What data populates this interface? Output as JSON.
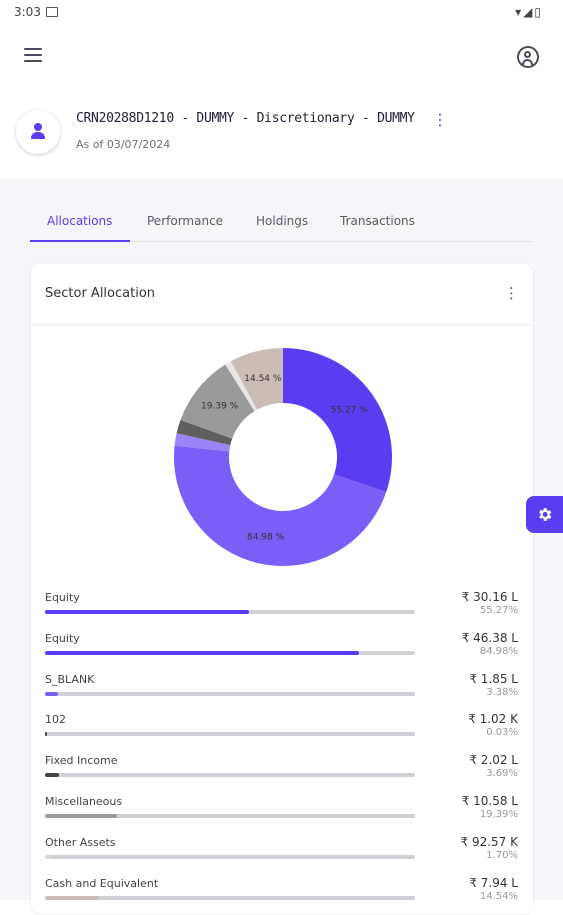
{
  "status": {
    "time": "3:03",
    "icons": "▾◢▯"
  },
  "account": {
    "name": "CRN20288D1210 - DUMMY - Discretionary - DUMMY",
    "kebab": "⋮",
    "as_of": "As of 03/07/2024"
  },
  "tabs": [
    {
      "label": "Allocations"
    },
    {
      "label": "Performance"
    },
    {
      "label": "Holdings"
    },
    {
      "label": "Transactions"
    }
  ],
  "card": {
    "title": "Sector Allocation",
    "kebab": "⋮"
  },
  "chart_data": {
    "type": "pie",
    "variant": "donut",
    "slices": [
      {
        "label": "55.27 %",
        "value": 55.27,
        "color": "#5b3cf0"
      },
      {
        "label": "84.98 %",
        "value": 84.98,
        "color": "#7b5ef5"
      },
      {
        "label": "",
        "value": 3.38,
        "color": "#9b84f7"
      },
      {
        "label": "",
        "value": 0.03,
        "color": "#444444"
      },
      {
        "label": "",
        "value": 3.69,
        "color": "#5f5f5f"
      },
      {
        "label": "19.39 %",
        "value": 19.39,
        "color": "#9a9a9a"
      },
      {
        "label": "",
        "value": 1.7,
        "color": "#e6e6e6"
      },
      {
        "label": "14.54 %",
        "value": 14.54,
        "color": "#cbbdb5"
      }
    ]
  },
  "allocations": [
    {
      "name": "Equity",
      "amount": "₹ 30.16 L",
      "pct": "55.27%",
      "fraction": 0.5527,
      "color": "#5b3cf0"
    },
    {
      "name": "Equity",
      "amount": "₹ 46.38 L",
      "pct": "84.98%",
      "fraction": 0.8498,
      "color": "#5b3cf0"
    },
    {
      "name": "S_BLANK",
      "amount": "₹ 1.85 L",
      "pct": "3.38%",
      "fraction": 0.0338,
      "color": "#7b5ef5"
    },
    {
      "name": "102",
      "amount": "₹ 1.02 K",
      "pct": "0.03%",
      "fraction": 0.0003,
      "color": "#444444"
    },
    {
      "name": "Fixed Income",
      "amount": "₹ 2.02 L",
      "pct": "3.69%",
      "fraction": 0.0369,
      "color": "#444444"
    },
    {
      "name": "Miscellaneous",
      "amount": "₹ 10.58 L",
      "pct": "19.39%",
      "fraction": 0.1939,
      "color": "#9a9a9a"
    },
    {
      "name": "Other Assets",
      "amount": "₹ 92.57 K",
      "pct": "1.70%",
      "fraction": 0.017,
      "color": "#d8d8d8"
    },
    {
      "name": "Cash and Equivalent",
      "amount": "₹ 7.94 L",
      "pct": "14.54%",
      "fraction": 0.1454,
      "color": "#cbbdb5"
    }
  ]
}
